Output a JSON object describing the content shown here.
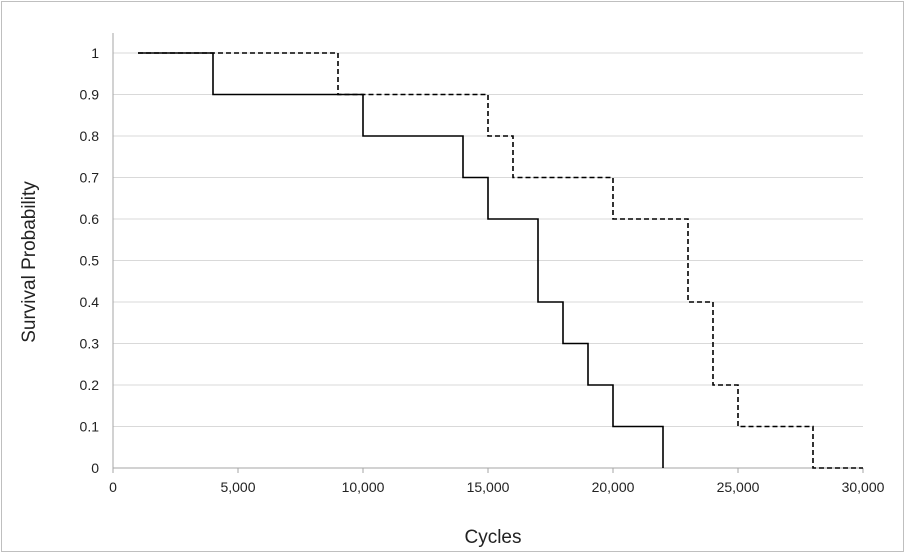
{
  "chart_data": {
    "type": "line",
    "step": true,
    "title": "",
    "xlabel": "Cycles",
    "ylabel": "Survival Probability",
    "xlim": [
      0,
      30000
    ],
    "ylim": [
      0,
      1
    ],
    "grid": "horizontal",
    "legend": "none",
    "x_ticks": [
      0,
      5000,
      10000,
      15000,
      20000,
      25000,
      30000
    ],
    "x_tick_labels": [
      "0",
      "5,000",
      "10,000",
      "15,000",
      "20,000",
      "25,000",
      "30,000"
    ],
    "y_ticks": [
      0,
      0.1,
      0.2,
      0.3,
      0.4,
      0.5,
      0.6,
      0.7,
      0.8,
      0.9,
      1
    ],
    "y_tick_labels": [
      "0",
      "0.1",
      "0.2",
      "0.3",
      "0.4",
      "0.5",
      "0.6",
      "0.7",
      "0.8",
      "0.9",
      "1"
    ],
    "series": [
      {
        "style": "solid",
        "color": "#000000",
        "points": [
          [
            1000,
            1
          ],
          [
            4000,
            1
          ],
          [
            4000,
            0.9
          ],
          [
            10000,
            0.9
          ],
          [
            10000,
            0.8
          ],
          [
            14000,
            0.8
          ],
          [
            14000,
            0.7
          ],
          [
            15000,
            0.7
          ],
          [
            15000,
            0.6
          ],
          [
            17000,
            0.6
          ],
          [
            17000,
            0.4
          ],
          [
            18000,
            0.4
          ],
          [
            18000,
            0.3
          ],
          [
            19000,
            0.3
          ],
          [
            19000,
            0.2
          ],
          [
            20000,
            0.2
          ],
          [
            20000,
            0.1
          ],
          [
            22000,
            0.1
          ],
          [
            22000,
            0
          ]
        ]
      },
      {
        "style": "dashed",
        "color": "#000000",
        "points": [
          [
            1000,
            1
          ],
          [
            9000,
            1
          ],
          [
            9000,
            0.9
          ],
          [
            15000,
            0.9
          ],
          [
            15000,
            0.8
          ],
          [
            16000,
            0.8
          ],
          [
            16000,
            0.7
          ],
          [
            20000,
            0.7
          ],
          [
            20000,
            0.6
          ],
          [
            23000,
            0.6
          ],
          [
            23000,
            0.4
          ],
          [
            24000,
            0.4
          ],
          [
            24000,
            0.2
          ],
          [
            25000,
            0.2
          ],
          [
            25000,
            0.1
          ],
          [
            28000,
            0.1
          ],
          [
            28000,
            0
          ],
          [
            30000,
            0
          ]
        ]
      }
    ]
  }
}
